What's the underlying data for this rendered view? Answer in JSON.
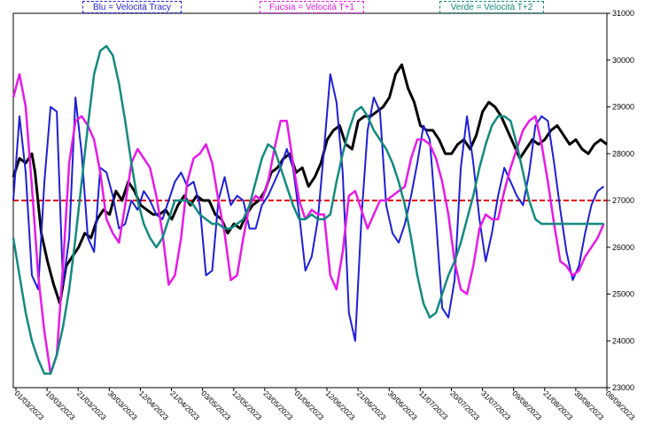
{
  "chart_data": {
    "type": "line",
    "title": "",
    "xlabel": "",
    "ylabel": "",
    "ylim": [
      23000,
      31000
    ],
    "y_ticks": [
      "23000",
      "24000",
      "25000",
      "26000",
      "27000",
      "28000",
      "29000",
      "30000",
      "31000"
    ],
    "x_ticks": [
      "01/03/2023",
      "10/03/2023",
      "21/03/2023",
      "30/03/2023",
      "12/04/2023",
      "21/04/2023",
      "03/05/2023",
      "12/05/2023",
      "23/05/2023",
      "01/06/2023",
      "12/06/2023",
      "21/06/2023",
      "30/06/2023",
      "11/07/2023",
      "20/07/2023",
      "31/07/2023",
      "09/08/2023",
      "21/08/2023",
      "30/08/2023",
      "08/09/2023"
    ],
    "grid": false,
    "legend": [
      {
        "label": "Blu = Velocità Tracy",
        "color": "#1f1fd6"
      },
      {
        "label": "Fucsia = Velocità T+1",
        "color": "#e61be6"
      },
      {
        "label": "Verde = Velocità T+2",
        "color": "#138a7e"
      }
    ],
    "reference_line": {
      "value": 27000,
      "color": "#e00000",
      "style": "dashed"
    },
    "series": [
      {
        "color": "#000000",
        "x_index": [
          0,
          2,
          4,
          6,
          7,
          9,
          11,
          13,
          15,
          17,
          19,
          21,
          23,
          25,
          27,
          29,
          31,
          33,
          35,
          37,
          39,
          41,
          43,
          45,
          47,
          49,
          51,
          53,
          55,
          57,
          59,
          61,
          63,
          65,
          67,
          69,
          71,
          73,
          75,
          77,
          79,
          81,
          83,
          85,
          87,
          89,
          91,
          93,
          95,
          97,
          99,
          101,
          103,
          105,
          107,
          109,
          111,
          113,
          115,
          117,
          119,
          121,
          123,
          125,
          127,
          129,
          131,
          133,
          135,
          137,
          139,
          141,
          143,
          145,
          147,
          149,
          151,
          153,
          155,
          157,
          159,
          161,
          163,
          165,
          167,
          169,
          171,
          173,
          175,
          177,
          179,
          181,
          183,
          185,
          187,
          189,
          191
        ],
        "values": [
          27500,
          27900,
          27800,
          28000,
          27600,
          26300,
          25700,
          25200,
          24800,
          25600,
          25800,
          26000,
          26300,
          26200,
          26600,
          26800,
          26700,
          27200,
          27000,
          27400,
          27200,
          26900,
          26800,
          26700,
          26700,
          26800,
          26600,
          26900,
          27100,
          26900,
          27100,
          27000,
          27000,
          26700,
          26600,
          26300,
          26500,
          26400,
          26700,
          26900,
          27000,
          27200,
          27600,
          27700,
          27900,
          28000,
          27600,
          27700,
          27300,
          27500,
          27800,
          28300,
          28500,
          28600,
          28200,
          28100,
          28700,
          28800,
          28800,
          28900,
          29000,
          29200,
          29700,
          29900,
          29400,
          29100,
          28600,
          28500,
          28500,
          28300,
          28000,
          28000,
          28200,
          28300,
          28100,
          28400,
          28900,
          29100,
          29000,
          28800,
          28500,
          28200,
          27900,
          28100,
          28300,
          28200,
          28300,
          28500,
          28600,
          28400,
          28200,
          28300,
          28100,
          28000,
          28200,
          28300,
          28200
        ]
      },
      {
        "name": "Blu = Velocità Tracy",
        "color": "#1f1fd6",
        "x_index": [
          0,
          2,
          4,
          6,
          8,
          10,
          12,
          14,
          16,
          18,
          20,
          22,
          24,
          26,
          28,
          30,
          32,
          34,
          36,
          38,
          40,
          42,
          44,
          46,
          48,
          50,
          52,
          54,
          56,
          58,
          60,
          62,
          64,
          66,
          68,
          70,
          72,
          74,
          76,
          78,
          80,
          82,
          84,
          86,
          88,
          90,
          92,
          94,
          96,
          98,
          100,
          102,
          104,
          106,
          108,
          110,
          112,
          114,
          116,
          118,
          120,
          122,
          124,
          126,
          128,
          130,
          132,
          134,
          136,
          138,
          140,
          142,
          144,
          146,
          148,
          150,
          152,
          154,
          156,
          158,
          160,
          162,
          164,
          166,
          168,
          170,
          172,
          174,
          176,
          178,
          180,
          182,
          184,
          186,
          188,
          190
        ],
        "values": [
          27000,
          28800,
          27600,
          25400,
          25100,
          27400,
          29000,
          28900,
          25200,
          26200,
          29200,
          28000,
          26200,
          25900,
          27700,
          27600,
          27100,
          26400,
          26500,
          27000,
          26800,
          27200,
          27000,
          26700,
          26600,
          27000,
          27400,
          27600,
          27300,
          27400,
          26900,
          25400,
          25500,
          27000,
          27500,
          26900,
          27100,
          27000,
          26400,
          26400,
          26900,
          27100,
          27400,
          27700,
          28100,
          27700,
          26700,
          25500,
          25800,
          26600,
          28100,
          29700,
          29100,
          27600,
          24600,
          24000,
          26600,
          28500,
          29200,
          28900,
          26900,
          26300,
          26100,
          26500,
          27100,
          27800,
          28600,
          28300,
          26600,
          24700,
          24500,
          25300,
          27700,
          28800,
          27800,
          26600,
          25700,
          26300,
          27100,
          27700,
          27400,
          27100,
          26900,
          27600,
          28600,
          28800,
          28700,
          27800,
          26800,
          25900,
          25300,
          25600,
          26300,
          26900,
          27200,
          27300
        ]
      },
      {
        "name": "Fucsia = Velocità T+1",
        "color": "#e61be6",
        "x_index": [
          0,
          2,
          4,
          6,
          8,
          10,
          12,
          14,
          16,
          18,
          20,
          22,
          24,
          26,
          28,
          30,
          32,
          34,
          36,
          38,
          40,
          42,
          44,
          46,
          48,
          50,
          52,
          54,
          56,
          58,
          60,
          62,
          64,
          66,
          68,
          70,
          72,
          74,
          76,
          78,
          80,
          82,
          84,
          86,
          88,
          90,
          92,
          94,
          96,
          98,
          100,
          102,
          104,
          106,
          108,
          110,
          112,
          114,
          116,
          118,
          120,
          122,
          124,
          126,
          128,
          130,
          132,
          134,
          136,
          138,
          140,
          142,
          144,
          146,
          148,
          150,
          152,
          154,
          156,
          158,
          160,
          162,
          164,
          166,
          168,
          170,
          172,
          174,
          176,
          178,
          180,
          182,
          184,
          186,
          188,
          190
        ],
        "values": [
          29200,
          29700,
          29000,
          27300,
          25400,
          24200,
          23300,
          23700,
          25600,
          27800,
          28700,
          28800,
          28600,
          28300,
          27600,
          26600,
          26300,
          26100,
          26900,
          27800,
          28100,
          27900,
          27700,
          27100,
          26300,
          25200,
          25400,
          26200,
          27400,
          27900,
          28000,
          28200,
          27800,
          27000,
          26300,
          25300,
          25400,
          26200,
          26900,
          27100,
          27000,
          27400,
          28100,
          28700,
          28700,
          27800,
          27000,
          26600,
          26800,
          26700,
          26700,
          25400,
          25100,
          25900,
          27100,
          27200,
          26800,
          26400,
          26700,
          27000,
          27000,
          27100,
          27200,
          27300,
          27900,
          28300,
          28300,
          28200,
          27900,
          27400,
          26700,
          25700,
          25100,
          25000,
          25600,
          26400,
          26700,
          26600,
          26600,
          27200,
          27700,
          28100,
          28500,
          28700,
          28800,
          28200,
          27400,
          26500,
          25700,
          25600,
          25400,
          25500,
          25800,
          26000,
          26200,
          26500
        ]
      },
      {
        "name": "Verde = Velocità T+2",
        "color": "#138a7e",
        "x_index": [
          0,
          2,
          4,
          6,
          8,
          10,
          12,
          14,
          16,
          18,
          20,
          22,
          24,
          26,
          28,
          30,
          32,
          34,
          36,
          38,
          40,
          42,
          44,
          46,
          48,
          50,
          52,
          54,
          56,
          58,
          60,
          62,
          64,
          66,
          68,
          70,
          72,
          74,
          76,
          78,
          80,
          82,
          84,
          86,
          88,
          90,
          92,
          94,
          96,
          98,
          100,
          102,
          104,
          106,
          108,
          110,
          112,
          114,
          116,
          118,
          120,
          122,
          124,
          126,
          128,
          130,
          132,
          134,
          136,
          138,
          140,
          142,
          144,
          146,
          148,
          150,
          152,
          154,
          156,
          158,
          160,
          162,
          164,
          166,
          168,
          170,
          172,
          174,
          176,
          178,
          180,
          182,
          184,
          186,
          188,
          190
        ],
        "values": [
          26200,
          25400,
          24600,
          24000,
          23600,
          23300,
          23300,
          23700,
          24300,
          25100,
          26200,
          27400,
          28600,
          29700,
          30200,
          30300,
          30100,
          29500,
          28700,
          27800,
          27000,
          26500,
          26200,
          26000,
          26200,
          26600,
          27000,
          27000,
          27000,
          26900,
          26700,
          26600,
          26500,
          26500,
          26400,
          26400,
          26500,
          26600,
          26900,
          27400,
          27900,
          28200,
          28100,
          27700,
          27300,
          26900,
          26600,
          26600,
          26700,
          26600,
          26600,
          26700,
          27400,
          28000,
          28500,
          28900,
          29000,
          28800,
          28500,
          28300,
          28100,
          27800,
          27400,
          26900,
          26200,
          25400,
          24800,
          24500,
          24600,
          25000,
          25400,
          25700,
          26100,
          26600,
          27100,
          27700,
          28200,
          28600,
          28800,
          28800,
          28700,
          28200,
          27600,
          27000,
          26600,
          26500,
          26500,
          26500,
          26500,
          26500,
          26500,
          26500,
          26500,
          26500,
          26500,
          26500
        ]
      }
    ]
  }
}
